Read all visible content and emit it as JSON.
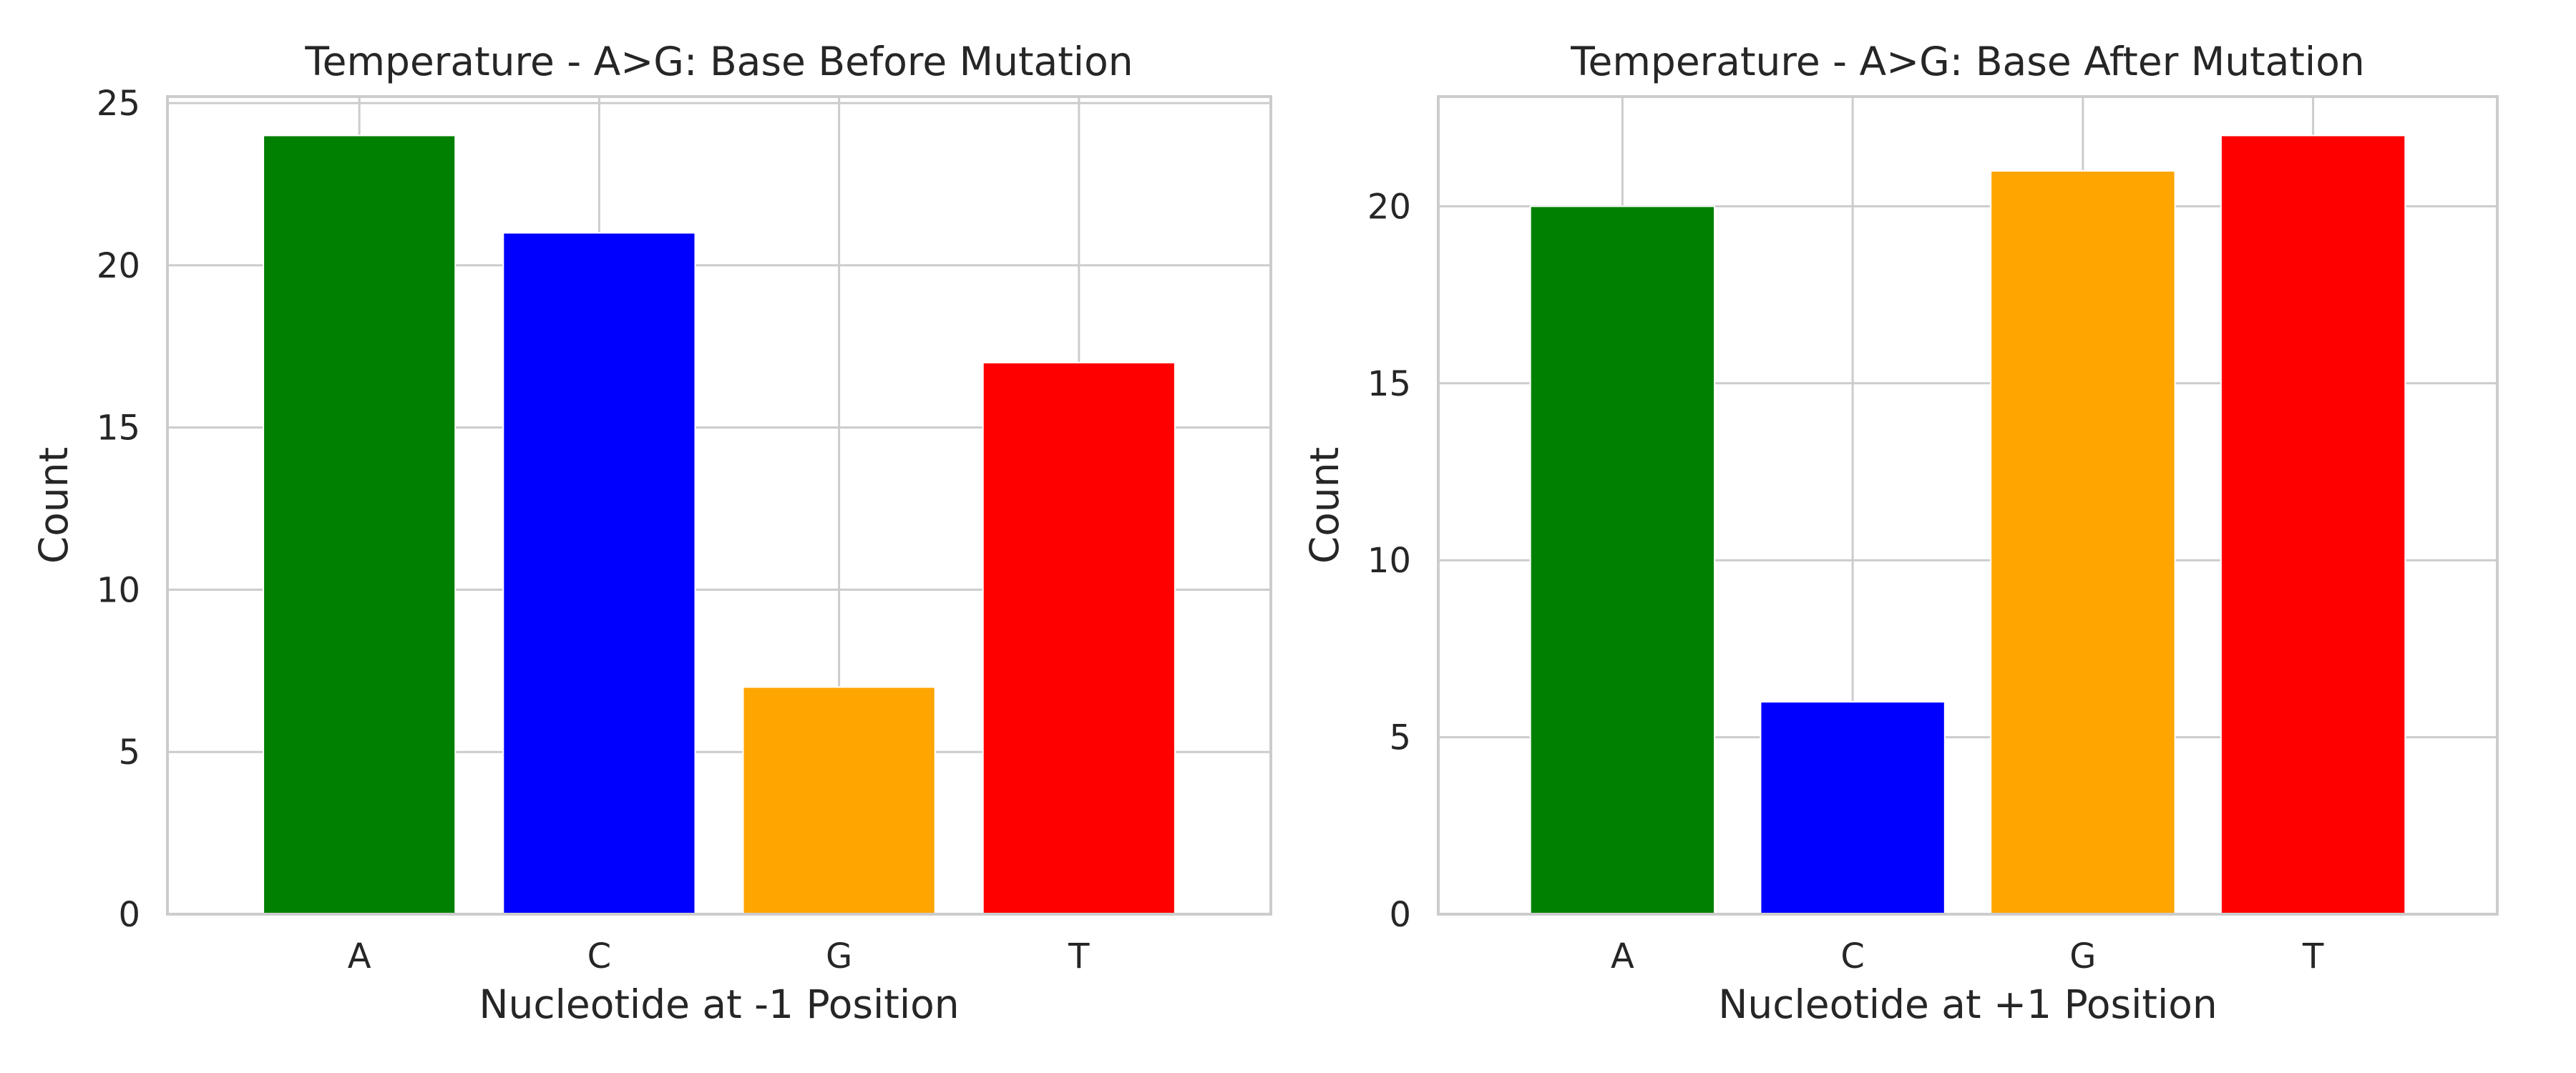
{
  "chart_data": [
    {
      "type": "bar",
      "title": "Temperature - A>G: Base Before Mutation",
      "xlabel": "Nucleotide at -1 Position",
      "ylabel": "Count",
      "categories": [
        "A",
        "C",
        "G",
        "T"
      ],
      "values": [
        24,
        21,
        7,
        17
      ],
      "colors": [
        "#008000",
        "#0000ff",
        "#ffa500",
        "#ff0000"
      ],
      "ylim": [
        0,
        25.2
      ],
      "yticks": [
        0,
        5,
        10,
        15,
        20,
        25
      ],
      "grid": true,
      "legend": "none"
    },
    {
      "type": "bar",
      "title": "Temperature - A>G: Base After Mutation",
      "xlabel": "Nucleotide at +1 Position",
      "ylabel": "Count",
      "categories": [
        "A",
        "C",
        "G",
        "T"
      ],
      "values": [
        20,
        6,
        21,
        22
      ],
      "colors": [
        "#008000",
        "#0000ff",
        "#ffa500",
        "#ff0000"
      ],
      "ylim": [
        0,
        23.1
      ],
      "yticks": [
        0,
        5,
        10,
        15,
        20
      ],
      "grid": true,
      "legend": "none"
    }
  ]
}
